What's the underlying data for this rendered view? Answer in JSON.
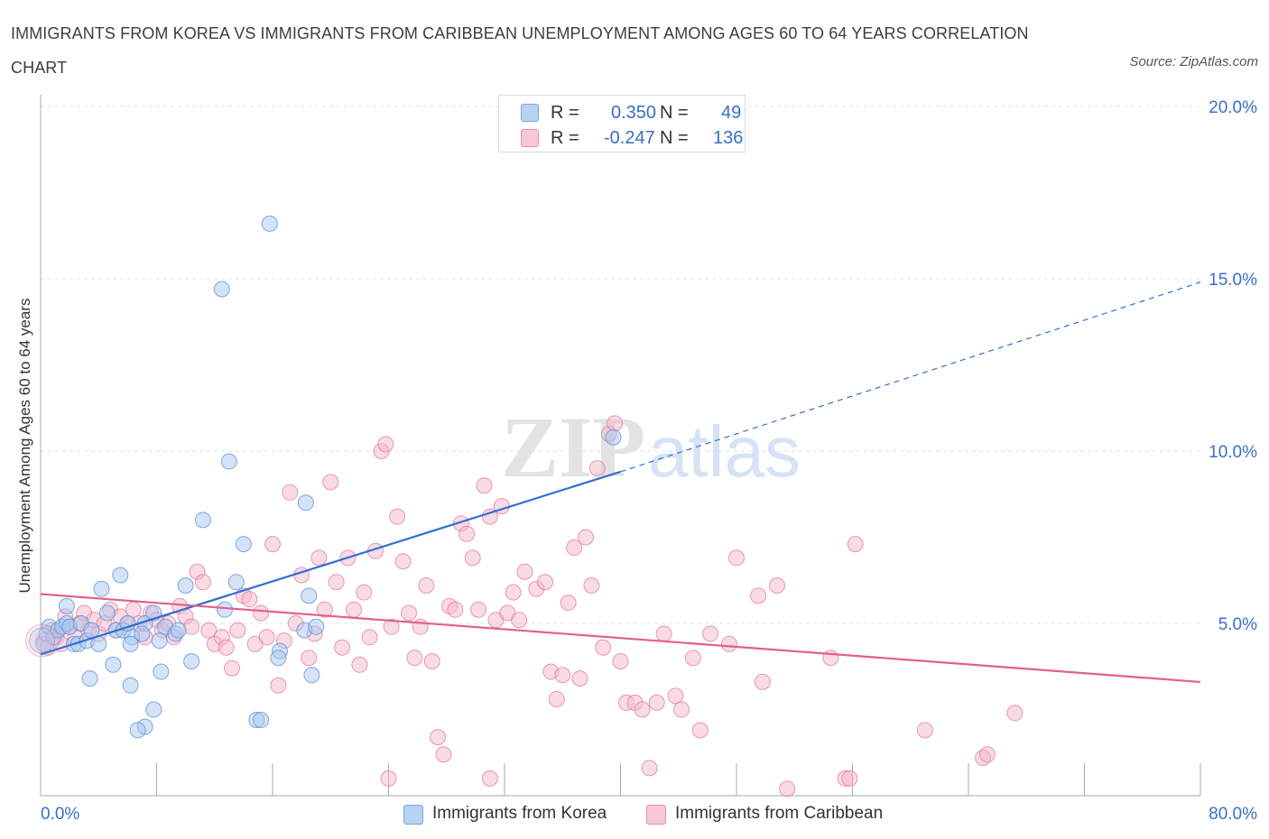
{
  "title": "IMMIGRANTS FROM KOREA VS IMMIGRANTS FROM CARIBBEAN UNEMPLOYMENT AMONG AGES 60 TO 64 YEARS CORRELATION CHART",
  "source": "Source: ZipAtlas.com",
  "watermark": {
    "zip": "ZIP",
    "atlas": "atlas"
  },
  "legend": {
    "r_label": "R =",
    "n_label": "N =",
    "rows": [
      {
        "r": "0.350",
        "n": "49",
        "color": "#a9c8f0"
      },
      {
        "r": "-0.247",
        "n": "136",
        "color": "#f4b8cb"
      }
    ]
  },
  "chart_data": {
    "type": "scatter",
    "title": "IMMIGRANTS FROM KOREA VS IMMIGRANTS FROM CARIBBEAN UNEMPLOYMENT AMONG AGES 60 TO 64 YEARS CORRELATION CHART",
    "xlabel": "",
    "ylabel": "Unemployment Among Ages 60 to 64 years",
    "xlim": [
      0,
      80
    ],
    "ylim": [
      0,
      20
    ],
    "x_tick_labels": [
      "0.0%",
      "80.0%"
    ],
    "y_ticks": [
      5,
      10,
      15,
      20
    ],
    "y_tick_labels": [
      "5.0%",
      "10.0%",
      "15.0%",
      "20.0%"
    ],
    "grid": true,
    "legend_position": "top-center",
    "series": [
      {
        "name": "Immigrants from Korea",
        "color": "#a9c8f0",
        "edge": "#5a8fd6",
        "trend_color": "#2f6fd0",
        "trend": {
          "x0": 0,
          "y0": 4.1,
          "x1": 40,
          "y1": 9.4,
          "extend_to_x": 80,
          "extend_to_y": 14.9
        },
        "points": [
          [
            0.2,
            4.4
          ],
          [
            0.4,
            4.7
          ],
          [
            0.6,
            4.9
          ],
          [
            0.9,
            4.6
          ],
          [
            1.2,
            4.8
          ],
          [
            1.5,
            4.9
          ],
          [
            1.8,
            5.0
          ],
          [
            2.0,
            4.9
          ],
          [
            2.3,
            4.4
          ],
          [
            2.6,
            4.4
          ],
          [
            3.2,
            4.5
          ],
          [
            4.0,
            4.4
          ],
          [
            1.8,
            5.5
          ],
          [
            2.8,
            5.0
          ],
          [
            3.5,
            4.8
          ],
          [
            4.2,
            6.0
          ],
          [
            4.6,
            5.3
          ],
          [
            5.2,
            4.8
          ],
          [
            5.7,
            4.8
          ],
          [
            6.0,
            5.0
          ],
          [
            5.5,
            6.4
          ],
          [
            6.3,
            4.6
          ],
          [
            6.2,
            4.4
          ],
          [
            7.2,
            5.0
          ],
          [
            7.0,
            4.7
          ],
          [
            7.8,
            5.3
          ],
          [
            8.2,
            4.5
          ],
          [
            8.6,
            4.9
          ],
          [
            9.3,
            4.7
          ],
          [
            10.0,
            6.1
          ],
          [
            9.5,
            4.8
          ],
          [
            10.4,
            3.9
          ],
          [
            5.0,
            3.8
          ],
          [
            3.4,
            3.4
          ],
          [
            6.2,
            3.2
          ],
          [
            8.3,
            3.6
          ],
          [
            12.7,
            5.4
          ],
          [
            13.5,
            6.2
          ],
          [
            14.0,
            7.3
          ],
          [
            11.2,
            8.0
          ],
          [
            13.0,
            9.7
          ],
          [
            12.5,
            14.7
          ],
          [
            15.8,
            16.6
          ],
          [
            14.9,
            2.2
          ],
          [
            15.2,
            2.2
          ],
          [
            7.8,
            2.5
          ],
          [
            7.2,
            2.0
          ],
          [
            6.7,
            1.9
          ],
          [
            16.5,
            4.2
          ],
          [
            16.4,
            4.0
          ],
          [
            18.2,
            4.8
          ],
          [
            18.5,
            5.8
          ],
          [
            19.0,
            4.9
          ],
          [
            18.7,
            3.5
          ],
          [
            18.3,
            8.5
          ],
          [
            39.5,
            10.4
          ]
        ]
      },
      {
        "name": "Immigrants from Caribbean",
        "color": "#f4b8cb",
        "edge": "#e07a9c",
        "trend_color": "#e06090",
        "trend": {
          "x0": 0,
          "y0": 5.85,
          "x1": 80,
          "y1": 3.3
        },
        "points": [
          [
            0.2,
            4.5
          ],
          [
            0.5,
            4.3
          ],
          [
            0.8,
            4.8
          ],
          [
            1.1,
            4.6
          ],
          [
            1.4,
            4.4
          ],
          [
            1.7,
            5.2
          ],
          [
            2.0,
            4.9
          ],
          [
            2.4,
            4.6
          ],
          [
            2.7,
            5.0
          ],
          [
            3.0,
            5.3
          ],
          [
            3.3,
            4.8
          ],
          [
            3.7,
            5.1
          ],
          [
            4.0,
            4.7
          ],
          [
            4.4,
            5.0
          ],
          [
            4.8,
            5.4
          ],
          [
            5.2,
            4.8
          ],
          [
            5.5,
            5.2
          ],
          [
            6.0,
            5.0
          ],
          [
            6.4,
            5.4
          ],
          [
            6.8,
            5.0
          ],
          [
            7.2,
            4.6
          ],
          [
            7.6,
            5.3
          ],
          [
            8.0,
            5.1
          ],
          [
            8.4,
            4.8
          ],
          [
            8.8,
            5.0
          ],
          [
            9.2,
            4.6
          ],
          [
            9.6,
            5.5
          ],
          [
            10.0,
            5.2
          ],
          [
            10.4,
            4.9
          ],
          [
            10.8,
            6.5
          ],
          [
            11.2,
            6.2
          ],
          [
            11.6,
            4.8
          ],
          [
            12.0,
            4.4
          ],
          [
            12.5,
            4.6
          ],
          [
            12.8,
            4.3
          ],
          [
            13.2,
            3.7
          ],
          [
            13.6,
            4.8
          ],
          [
            14.0,
            5.8
          ],
          [
            14.4,
            5.7
          ],
          [
            14.8,
            4.4
          ],
          [
            15.2,
            5.3
          ],
          [
            15.6,
            4.6
          ],
          [
            16.0,
            7.3
          ],
          [
            16.4,
            3.2
          ],
          [
            16.8,
            4.5
          ],
          [
            17.2,
            8.8
          ],
          [
            17.6,
            5.0
          ],
          [
            18.0,
            6.4
          ],
          [
            18.5,
            4.0
          ],
          [
            18.9,
            4.7
          ],
          [
            19.2,
            6.9
          ],
          [
            19.6,
            5.4
          ],
          [
            20.0,
            9.1
          ],
          [
            20.4,
            6.2
          ],
          [
            20.8,
            4.3
          ],
          [
            21.2,
            6.9
          ],
          [
            21.6,
            5.4
          ],
          [
            22.0,
            3.8
          ],
          [
            22.3,
            5.9
          ],
          [
            22.7,
            4.6
          ],
          [
            23.1,
            7.1
          ],
          [
            23.5,
            10.0
          ],
          [
            23.8,
            10.2
          ],
          [
            24.2,
            4.9
          ],
          [
            24.6,
            8.1
          ],
          [
            25.0,
            6.8
          ],
          [
            25.4,
            5.3
          ],
          [
            25.8,
            4.0
          ],
          [
            26.2,
            4.9
          ],
          [
            26.6,
            6.1
          ],
          [
            27.0,
            3.9
          ],
          [
            27.4,
            1.7
          ],
          [
            27.8,
            1.2
          ],
          [
            28.2,
            5.5
          ],
          [
            28.6,
            5.4
          ],
          [
            29.0,
            7.9
          ],
          [
            29.4,
            7.6
          ],
          [
            29.8,
            6.9
          ],
          [
            30.2,
            5.4
          ],
          [
            30.6,
            9.0
          ],
          [
            31.0,
            8.1
          ],
          [
            31.4,
            5.1
          ],
          [
            31.8,
            8.4
          ],
          [
            32.2,
            5.3
          ],
          [
            32.6,
            5.9
          ],
          [
            33.0,
            5.1
          ],
          [
            33.4,
            6.5
          ],
          [
            34.2,
            6.0
          ],
          [
            34.8,
            6.2
          ],
          [
            35.2,
            3.6
          ],
          [
            35.6,
            2.8
          ],
          [
            36.0,
            3.5
          ],
          [
            36.4,
            5.6
          ],
          [
            36.8,
            7.2
          ],
          [
            37.2,
            3.4
          ],
          [
            37.6,
            7.5
          ],
          [
            38.0,
            6.1
          ],
          [
            38.4,
            9.5
          ],
          [
            38.8,
            4.3
          ],
          [
            39.2,
            10.5
          ],
          [
            39.6,
            10.8
          ],
          [
            40.0,
            3.9
          ],
          [
            40.4,
            2.7
          ],
          [
            41.0,
            2.7
          ],
          [
            41.5,
            2.5
          ],
          [
            42.0,
            0.8
          ],
          [
            42.5,
            2.7
          ],
          [
            43.0,
            4.7
          ],
          [
            43.8,
            2.9
          ],
          [
            44.2,
            2.5
          ],
          [
            45.0,
            4.0
          ],
          [
            45.5,
            1.9
          ],
          [
            46.2,
            4.7
          ],
          [
            47.5,
            4.4
          ],
          [
            48.0,
            6.9
          ],
          [
            49.5,
            5.8
          ],
          [
            49.8,
            3.3
          ],
          [
            50.8,
            6.1
          ],
          [
            54.5,
            4.0
          ],
          [
            55.5,
            0.5
          ],
          [
            55.8,
            0.5
          ],
          [
            56.2,
            7.3
          ],
          [
            61.0,
            1.9
          ],
          [
            65.0,
            1.1
          ],
          [
            65.3,
            1.2
          ],
          [
            67.2,
            2.4
          ],
          [
            51.5,
            0.2
          ],
          [
            24.0,
            0.5
          ],
          [
            31.0,
            0.5
          ]
        ]
      }
    ]
  },
  "bottom_legend": [
    "Immigrants from Korea",
    "Immigrants from Caribbean"
  ]
}
